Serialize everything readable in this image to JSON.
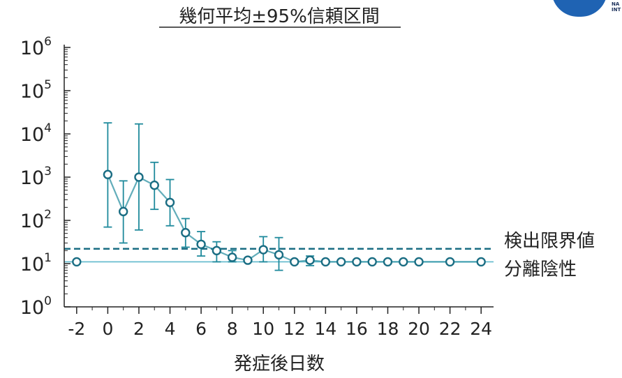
{
  "chart_data": {
    "type": "scatter",
    "title": "幾何平均±95%信頼区間",
    "xlabel": "発症後日数",
    "ylabel": "",
    "y_scale": "log",
    "ylim": [
      1,
      1000000
    ],
    "xlim": [
      -2.8,
      24.8
    ],
    "x_ticks": [
      -2,
      0,
      2,
      4,
      6,
      8,
      10,
      12,
      14,
      16,
      18,
      20,
      22,
      24
    ],
    "y_ticks": [
      {
        "value": 1,
        "base": "10",
        "exp": "0"
      },
      {
        "value": 10,
        "base": "10",
        "exp": "1"
      },
      {
        "value": 100,
        "base": "10",
        "exp": "2"
      },
      {
        "value": 1000,
        "base": "10",
        "exp": "3"
      },
      {
        "value": 10000,
        "base": "10",
        "exp": "4"
      },
      {
        "value": 100000,
        "base": "10",
        "exp": "5"
      },
      {
        "value": 1000000,
        "base": "10",
        "exp": "6"
      }
    ],
    "series": [
      {
        "x": [
          -2,
          0,
          1,
          2,
          3,
          4,
          5,
          6,
          7,
          8,
          9,
          10,
          11,
          12,
          13,
          14,
          15,
          16,
          17,
          18,
          19,
          20,
          22,
          24
        ],
        "y": [
          11,
          1150,
          160,
          1000,
          650,
          260,
          52,
          28,
          20,
          14,
          12,
          21,
          16,
          11,
          12,
          11,
          11,
          11,
          11,
          11,
          11,
          11,
          11,
          11
        ],
        "lower": [
          null,
          70,
          30,
          60,
          180,
          75,
          24,
          15,
          11,
          11,
          null,
          11,
          7,
          null,
          9,
          null,
          null,
          null,
          null,
          null,
          null,
          null,
          null,
          null
        ],
        "upper": [
          null,
          18000,
          820,
          17000,
          2200,
          880,
          110,
          55,
          32,
          20,
          null,
          42,
          40,
          null,
          15,
          null,
          null,
          null,
          null,
          null,
          null,
          null,
          null,
          null
        ],
        "connected": [
          false,
          true,
          true,
          true,
          true,
          true,
          true,
          true,
          true,
          true,
          true,
          true,
          true,
          true,
          true,
          true,
          true,
          true,
          true,
          true,
          true,
          true,
          true,
          true
        ],
        "color": "#1f8a9c"
      }
    ],
    "reference_lines": [
      {
        "label": "検出限界値",
        "value": 22,
        "style": "dashed",
        "color": "#1a6d83"
      },
      {
        "label": "分離陰性",
        "value": 11,
        "style": "solid",
        "color": "#5fb9cc"
      }
    ]
  },
  "logo": {
    "color": "#1f63b3",
    "text_line1": "NA",
    "text_line2": "INT"
  }
}
